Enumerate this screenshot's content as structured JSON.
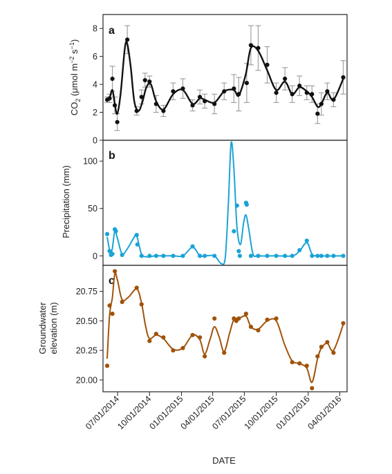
{
  "figure": {
    "xlabel": "DATE"
  },
  "x_ticks": [
    {
      "date": "2014-07-01",
      "label": "07/01/2014"
    },
    {
      "date": "2014-10-01",
      "label": "10/01/2014"
    },
    {
      "date": "2015-01-01",
      "label": "01/01/2015"
    },
    {
      "date": "2015-04-01",
      "label": "04/01/2015"
    },
    {
      "date": "2015-07-01",
      "label": "07/01/2015"
    },
    {
      "date": "2015-10-01",
      "label": "10/01/2015"
    },
    {
      "date": "2016-01-01",
      "label": "01/01/2016"
    },
    {
      "date": "2016-04-01",
      "label": "04/01/2016"
    }
  ],
  "colors": {
    "co2": "#111111",
    "error_bar": "#a0a0a0",
    "precipitation": "#1ba3d6",
    "groundwater": "#a0520a",
    "axis": "#222222"
  },
  "chart_data": [
    {
      "type": "line",
      "panel": "a",
      "ylabel_parts": {
        "pre": "CO",
        "sub": "2",
        "mid": " (μmol m",
        "sup1": "−2",
        "gap": " s",
        "sup2": "−1",
        "post": ")"
      },
      "ylim": [
        0,
        9.0
      ],
      "yticks": [
        0,
        2,
        4,
        6,
        8
      ],
      "x_range": [
        "2014-05-20",
        "2016-04-22"
      ],
      "grid": false,
      "points": [
        {
          "x": "2014-06-01",
          "y": 2.9,
          "err": 0.2
        },
        {
          "x": "2014-06-08",
          "y": 3.0,
          "err": 0.3
        },
        {
          "x": "2014-06-16",
          "y": 4.4,
          "err": 0.9
        },
        {
          "x": "2014-06-23",
          "y": 2.5,
          "err": 0.6
        },
        {
          "x": "2014-06-30",
          "y": 1.3,
          "err": 0.6
        },
        {
          "x": "2014-07-29",
          "y": 7.2,
          "err": 1.0
        },
        {
          "x": "2014-08-25",
          "y": 2.1,
          "err": 0.3
        },
        {
          "x": "2014-09-08",
          "y": 3.1,
          "err": 0.5
        },
        {
          "x": "2014-09-18",
          "y": 4.3,
          "err": 0.5
        },
        {
          "x": "2014-10-01",
          "y": 4.2,
          "err": 0.4
        },
        {
          "x": "2014-10-20",
          "y": 2.6,
          "err": 0.6
        },
        {
          "x": "2014-11-10",
          "y": 2.1,
          "err": 0.4
        },
        {
          "x": "2014-12-08",
          "y": 3.5,
          "err": 0.6
        },
        {
          "x": "2015-01-05",
          "y": 3.7,
          "err": 0.7
        },
        {
          "x": "2015-02-02",
          "y": 2.5,
          "err": 0.4
        },
        {
          "x": "2015-02-23",
          "y": 3.1,
          "err": 0.5
        },
        {
          "x": "2015-03-09",
          "y": 2.8,
          "err": 0.5
        },
        {
          "x": "2015-04-06",
          "y": 2.6,
          "err": 0.7
        },
        {
          "x": "2015-05-04",
          "y": 3.5,
          "err": 0.6
        },
        {
          "x": "2015-06-01",
          "y": 3.7,
          "err": 1.0
        },
        {
          "x": "2015-06-15",
          "y": 3.3,
          "err": 1.2
        },
        {
          "x": "2015-07-08",
          "y": 4.1,
          "err": 1.4
        },
        {
          "x": "2015-07-20",
          "y": 6.8,
          "err": 1.4
        },
        {
          "x": "2015-08-10",
          "y": 6.6,
          "err": 1.6
        },
        {
          "x": "2015-09-05",
          "y": 5.4,
          "err": 1.3
        },
        {
          "x": "2015-10-01",
          "y": 3.4,
          "err": 0.7
        },
        {
          "x": "2015-10-26",
          "y": 4.4,
          "err": 0.8
        },
        {
          "x": "2015-11-16",
          "y": 3.3,
          "err": 0.6
        },
        {
          "x": "2015-12-07",
          "y": 3.9,
          "err": 0.7
        },
        {
          "x": "2015-12-28",
          "y": 3.4,
          "err": 0.5
        },
        {
          "x": "2016-01-12",
          "y": 3.3,
          "err": 0.6
        },
        {
          "x": "2016-01-28",
          "y": 1.9,
          "err": 0.7
        },
        {
          "x": "2016-02-08",
          "y": 2.6,
          "err": 0.8
        },
        {
          "x": "2016-02-25",
          "y": 3.5,
          "err": 0.6
        },
        {
          "x": "2016-03-14",
          "y": 2.9,
          "err": 0.5
        },
        {
          "x": "2016-04-11",
          "y": 4.5,
          "err": 1.2
        }
      ],
      "curve": [
        {
          "x": "2014-06-01",
          "y": 2.9
        },
        {
          "x": "2014-06-08",
          "y": 3.0
        },
        {
          "x": "2014-06-16",
          "y": 3.6
        },
        {
          "x": "2014-06-23",
          "y": 2.6
        },
        {
          "x": "2014-06-30",
          "y": 1.9
        },
        {
          "x": "2014-07-10",
          "y": 3.4
        },
        {
          "x": "2014-07-22",
          "y": 6.6
        },
        {
          "x": "2014-07-29",
          "y": 6.9
        },
        {
          "x": "2014-08-08",
          "y": 5.2
        },
        {
          "x": "2014-08-18",
          "y": 2.8
        },
        {
          "x": "2014-08-30",
          "y": 2.1
        },
        {
          "x": "2014-09-10",
          "y": 2.7
        },
        {
          "x": "2014-09-22",
          "y": 3.8
        },
        {
          "x": "2014-10-05",
          "y": 4.0
        },
        {
          "x": "2014-10-20",
          "y": 2.8
        },
        {
          "x": "2014-11-10",
          "y": 2.2
        },
        {
          "x": "2014-12-08",
          "y": 3.3
        },
        {
          "x": "2015-01-05",
          "y": 3.6
        },
        {
          "x": "2015-02-02",
          "y": 2.6
        },
        {
          "x": "2015-02-23",
          "y": 3.0
        },
        {
          "x": "2015-03-09",
          "y": 2.9
        },
        {
          "x": "2015-04-06",
          "y": 2.7
        },
        {
          "x": "2015-05-04",
          "y": 3.5
        },
        {
          "x": "2015-06-01",
          "y": 3.6
        },
        {
          "x": "2015-06-15",
          "y": 3.2
        },
        {
          "x": "2015-07-05",
          "y": 4.7
        },
        {
          "x": "2015-07-20",
          "y": 6.6
        },
        {
          "x": "2015-08-10",
          "y": 6.4
        },
        {
          "x": "2015-09-05",
          "y": 5.0
        },
        {
          "x": "2015-10-01",
          "y": 3.6
        },
        {
          "x": "2015-10-26",
          "y": 4.2
        },
        {
          "x": "2015-11-16",
          "y": 3.3
        },
        {
          "x": "2015-12-07",
          "y": 3.8
        },
        {
          "x": "2015-12-28",
          "y": 3.5
        },
        {
          "x": "2016-01-12",
          "y": 3.1
        },
        {
          "x": "2016-01-28",
          "y": 2.4
        },
        {
          "x": "2016-02-08",
          "y": 2.6
        },
        {
          "x": "2016-02-25",
          "y": 3.4
        },
        {
          "x": "2016-03-14",
          "y": 2.9
        },
        {
          "x": "2016-04-11",
          "y": 4.4
        }
      ]
    },
    {
      "type": "line",
      "panel": "b",
      "ylabel": "Precipitation (mm)",
      "ylim": [
        -10,
        122
      ],
      "yticks": [
        0,
        50,
        100
      ],
      "x_range": [
        "2014-05-20",
        "2016-04-22"
      ],
      "grid": false,
      "points": [
        {
          "x": "2014-06-01",
          "y": 23
        },
        {
          "x": "2014-06-08",
          "y": 5
        },
        {
          "x": "2014-06-12",
          "y": 1
        },
        {
          "x": "2014-06-16",
          "y": 2
        },
        {
          "x": "2014-06-23",
          "y": 28
        },
        {
          "x": "2014-06-26",
          "y": 26
        },
        {
          "x": "2014-07-14",
          "y": 1
        },
        {
          "x": "2014-08-25",
          "y": 22
        },
        {
          "x": "2014-08-27",
          "y": 12
        },
        {
          "x": "2014-09-08",
          "y": 0
        },
        {
          "x": "2014-10-01",
          "y": 0
        },
        {
          "x": "2014-10-20",
          "y": 0
        },
        {
          "x": "2014-11-10",
          "y": 0
        },
        {
          "x": "2014-12-08",
          "y": 0
        },
        {
          "x": "2015-01-05",
          "y": 0
        },
        {
          "x": "2015-02-02",
          "y": 10
        },
        {
          "x": "2015-02-23",
          "y": 0
        },
        {
          "x": "2015-03-09",
          "y": 0
        },
        {
          "x": "2015-04-06",
          "y": 0
        },
        {
          "x": "2015-06-01",
          "y": 26
        },
        {
          "x": "2015-06-10",
          "y": 53
        },
        {
          "x": "2015-06-15",
          "y": 5
        },
        {
          "x": "2015-06-18",
          "y": 0
        },
        {
          "x": "2015-07-06",
          "y": 56
        },
        {
          "x": "2015-07-08",
          "y": 54
        },
        {
          "x": "2015-07-20",
          "y": 0
        },
        {
          "x": "2015-08-10",
          "y": 0
        },
        {
          "x": "2015-09-05",
          "y": 0
        },
        {
          "x": "2015-10-01",
          "y": 0
        },
        {
          "x": "2015-10-26",
          "y": 0
        },
        {
          "x": "2015-11-16",
          "y": 0
        },
        {
          "x": "2015-12-07",
          "y": 6
        },
        {
          "x": "2015-12-28",
          "y": 16
        },
        {
          "x": "2016-01-12",
          "y": 0
        },
        {
          "x": "2016-01-28",
          "y": 0
        },
        {
          "x": "2016-02-08",
          "y": 0
        },
        {
          "x": "2016-02-25",
          "y": 0
        },
        {
          "x": "2016-03-14",
          "y": 0
        },
        {
          "x": "2016-04-11",
          "y": 0
        }
      ],
      "curve": [
        {
          "x": "2014-06-01",
          "y": 20
        },
        {
          "x": "2014-06-08",
          "y": 6
        },
        {
          "x": "2014-06-12",
          "y": 3
        },
        {
          "x": "2014-06-16",
          "y": 8
        },
        {
          "x": "2014-06-23",
          "y": 26
        },
        {
          "x": "2014-07-01",
          "y": 18
        },
        {
          "x": "2014-07-14",
          "y": 2
        },
        {
          "x": "2014-07-30",
          "y": 8
        },
        {
          "x": "2014-08-15",
          "y": 18
        },
        {
          "x": "2014-08-25",
          "y": 21
        },
        {
          "x": "2014-09-08",
          "y": 2
        },
        {
          "x": "2014-09-25",
          "y": -1
        },
        {
          "x": "2014-10-20",
          "y": 0
        },
        {
          "x": "2014-12-08",
          "y": 0
        },
        {
          "x": "2015-01-05",
          "y": 0
        },
        {
          "x": "2015-02-02",
          "y": 9
        },
        {
          "x": "2015-02-23",
          "y": 0
        },
        {
          "x": "2015-03-09",
          "y": 0
        },
        {
          "x": "2015-04-06",
          "y": 0
        },
        {
          "x": "2015-04-25",
          "y": -8
        },
        {
          "x": "2015-05-07",
          "y": -2
        },
        {
          "x": "2015-05-16",
          "y": 55
        },
        {
          "x": "2015-05-24",
          "y": 119
        },
        {
          "x": "2015-06-01",
          "y": 92
        },
        {
          "x": "2015-06-10",
          "y": 30
        },
        {
          "x": "2015-06-20",
          "y": 12
        },
        {
          "x": "2015-06-29",
          "y": 35
        },
        {
          "x": "2015-07-06",
          "y": 43
        },
        {
          "x": "2015-07-14",
          "y": 28
        },
        {
          "x": "2015-07-26",
          "y": 2
        },
        {
          "x": "2015-08-10",
          "y": 0
        },
        {
          "x": "2015-10-01",
          "y": 0
        },
        {
          "x": "2015-11-16",
          "y": 0
        },
        {
          "x": "2015-12-07",
          "y": 5
        },
        {
          "x": "2015-12-28",
          "y": 14
        },
        {
          "x": "2016-01-12",
          "y": 2
        },
        {
          "x": "2016-01-28",
          "y": 0
        },
        {
          "x": "2016-04-11",
          "y": 0
        }
      ]
    },
    {
      "type": "line",
      "panel": "c",
      "ylabel_lines": [
        "Groundwater",
        "elevation (m)"
      ],
      "ylim": [
        19.9,
        20.97
      ],
      "yticks": [
        20.0,
        20.25,
        20.5,
        20.75
      ],
      "ytick_labels": [
        "20.00",
        "20.25",
        "20.50",
        "20.75"
      ],
      "x_range": [
        "2014-05-20",
        "2016-04-22"
      ],
      "grid": false,
      "points": [
        {
          "x": "2014-06-01",
          "y": 20.12
        },
        {
          "x": "2014-06-08",
          "y": 20.63
        },
        {
          "x": "2014-06-16",
          "y": 20.56
        },
        {
          "x": "2014-06-23",
          "y": 20.92
        },
        {
          "x": "2014-07-14",
          "y": 20.66
        },
        {
          "x": "2014-08-25",
          "y": 20.78
        },
        {
          "x": "2014-09-08",
          "y": 20.64
        },
        {
          "x": "2014-10-01",
          "y": 20.33
        },
        {
          "x": "2014-10-20",
          "y": 20.39
        },
        {
          "x": "2014-11-10",
          "y": 20.36
        },
        {
          "x": "2014-12-08",
          "y": 20.25
        },
        {
          "x": "2015-01-05",
          "y": 20.27
        },
        {
          "x": "2015-02-02",
          "y": 20.38
        },
        {
          "x": "2015-02-23",
          "y": 20.36
        },
        {
          "x": "2015-03-09",
          "y": 20.2
        },
        {
          "x": "2015-04-06",
          "y": 20.52
        },
        {
          "x": "2015-05-04",
          "y": 20.23
        },
        {
          "x": "2015-06-01",
          "y": 20.52
        },
        {
          "x": "2015-06-08",
          "y": 20.5
        },
        {
          "x": "2015-06-15",
          "y": 20.52
        },
        {
          "x": "2015-07-06",
          "y": 20.56
        },
        {
          "x": "2015-07-20",
          "y": 20.45
        },
        {
          "x": "2015-08-10",
          "y": 20.42
        },
        {
          "x": "2015-09-05",
          "y": 20.51
        },
        {
          "x": "2015-10-01",
          "y": 20.52
        },
        {
          "x": "2015-11-16",
          "y": 20.15
        },
        {
          "x": "2015-12-07",
          "y": 20.14
        },
        {
          "x": "2015-12-28",
          "y": 20.12
        },
        {
          "x": "2016-01-12",
          "y": 19.93
        },
        {
          "x": "2016-01-28",
          "y": 20.2
        },
        {
          "x": "2016-02-08",
          "y": 20.28
        },
        {
          "x": "2016-02-25",
          "y": 20.32
        },
        {
          "x": "2016-03-14",
          "y": 20.23
        },
        {
          "x": "2016-04-11",
          "y": 20.48
        }
      ],
      "curve": [
        {
          "x": "2014-06-01",
          "y": 20.18
        },
        {
          "x": "2014-06-08",
          "y": 20.55
        },
        {
          "x": "2014-06-16",
          "y": 20.7
        },
        {
          "x": "2014-06-23",
          "y": 20.9
        },
        {
          "x": "2014-07-01",
          "y": 20.84
        },
        {
          "x": "2014-07-14",
          "y": 20.68
        },
        {
          "x": "2014-08-01",
          "y": 20.7
        },
        {
          "x": "2014-08-25",
          "y": 20.77
        },
        {
          "x": "2014-09-08",
          "y": 20.65
        },
        {
          "x": "2014-09-20",
          "y": 20.45
        },
        {
          "x": "2014-10-01",
          "y": 20.35
        },
        {
          "x": "2014-10-20",
          "y": 20.38
        },
        {
          "x": "2014-11-10",
          "y": 20.35
        },
        {
          "x": "2014-12-08",
          "y": 20.26
        },
        {
          "x": "2015-01-05",
          "y": 20.27
        },
        {
          "x": "2015-02-02",
          "y": 20.38
        },
        {
          "x": "2015-02-23",
          "y": 20.34
        },
        {
          "x": "2015-03-09",
          "y": 20.22
        },
        {
          "x": "2015-03-25",
          "y": 20.35
        },
        {
          "x": "2015-04-06",
          "y": 20.45
        },
        {
          "x": "2015-04-20",
          "y": 20.36
        },
        {
          "x": "2015-05-04",
          "y": 20.24
        },
        {
          "x": "2015-05-20",
          "y": 20.4
        },
        {
          "x": "2015-06-01",
          "y": 20.51
        },
        {
          "x": "2015-06-15",
          "y": 20.52
        },
        {
          "x": "2015-07-06",
          "y": 20.54
        },
        {
          "x": "2015-07-20",
          "y": 20.45
        },
        {
          "x": "2015-08-10",
          "y": 20.43
        },
        {
          "x": "2015-09-05",
          "y": 20.5
        },
        {
          "x": "2015-10-01",
          "y": 20.5
        },
        {
          "x": "2015-10-25",
          "y": 20.3
        },
        {
          "x": "2015-11-16",
          "y": 20.16
        },
        {
          "x": "2015-12-07",
          "y": 20.14
        },
        {
          "x": "2015-12-28",
          "y": 20.1
        },
        {
          "x": "2016-01-12",
          "y": 19.98
        },
        {
          "x": "2016-01-28",
          "y": 20.18
        },
        {
          "x": "2016-02-08",
          "y": 20.27
        },
        {
          "x": "2016-02-25",
          "y": 20.31
        },
        {
          "x": "2016-03-14",
          "y": 20.25
        },
        {
          "x": "2016-04-11",
          "y": 20.47
        }
      ]
    }
  ]
}
